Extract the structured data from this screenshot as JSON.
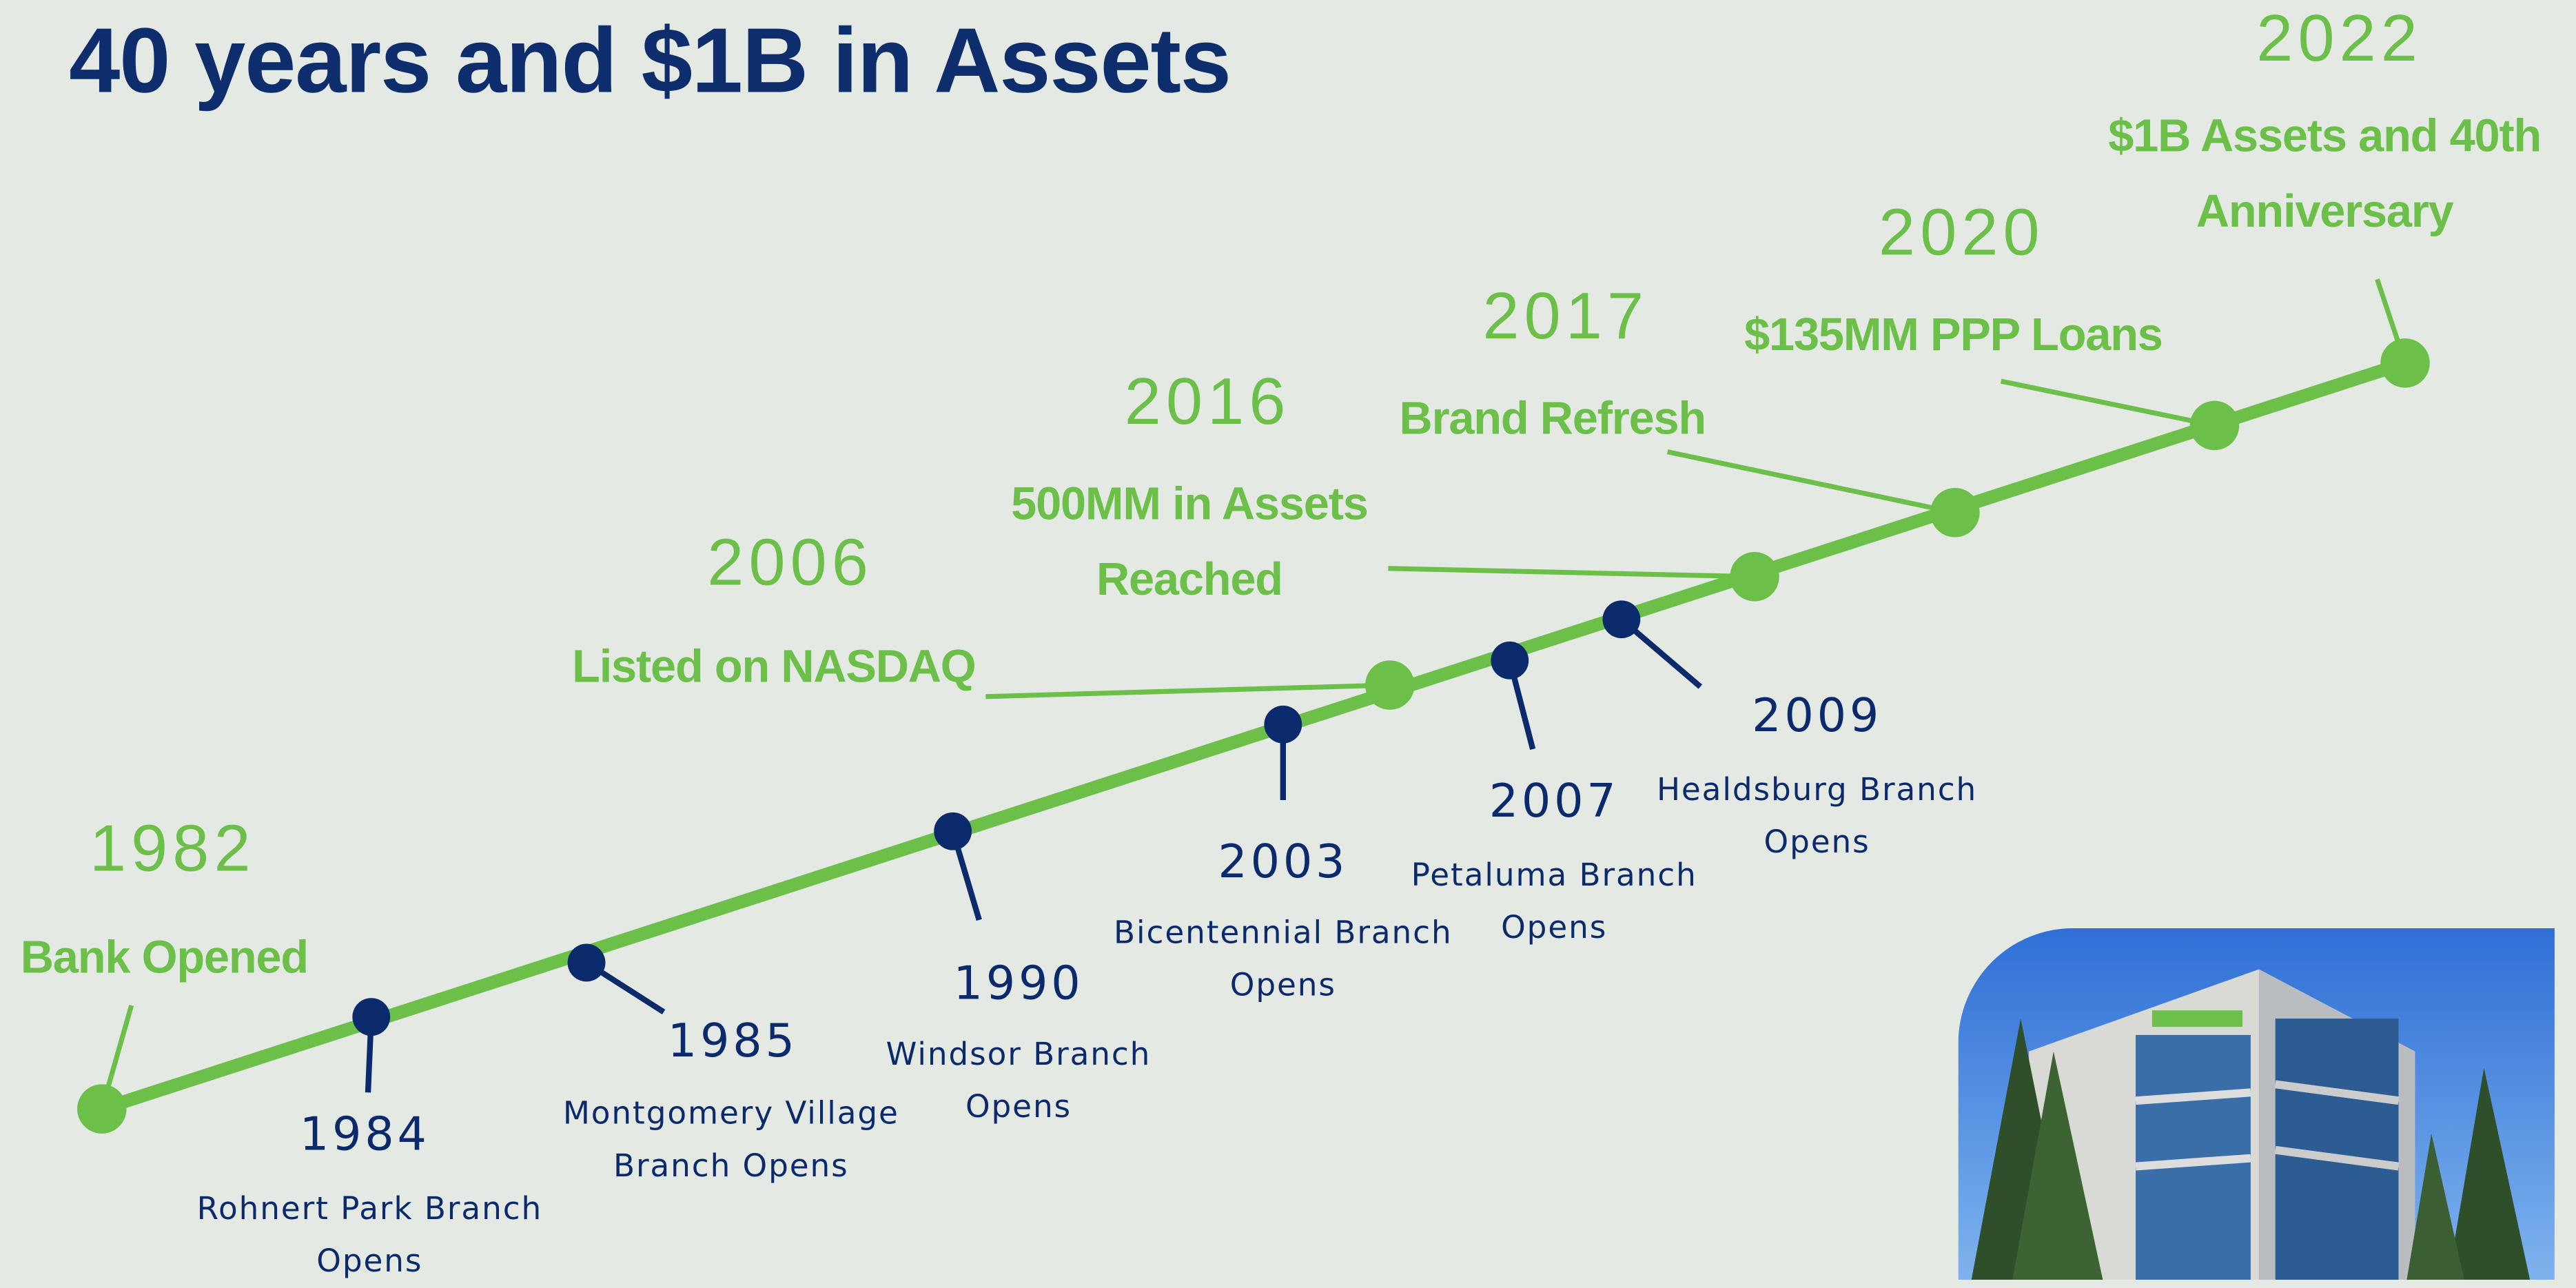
{
  "title": "40 years and $1B in Assets",
  "events": [
    {
      "year": "1982",
      "text": "Bank Opened"
    },
    {
      "year": "1984",
      "text": "Rohnert Park Branch Opens"
    },
    {
      "year": "1985",
      "text": "Montgomery Village Branch Opens"
    },
    {
      "year": "1990",
      "text": "Windsor Branch Opens"
    },
    {
      "year": "2003",
      "text": "Bicentennial Branch Opens"
    },
    {
      "year": "2006",
      "text": "Listed on NASDAQ"
    },
    {
      "year": "2007",
      "text": "Petaluma Branch Opens"
    },
    {
      "year": "2009",
      "text": "Healdsburg Branch Opens"
    },
    {
      "year": "2016",
      "text": "500MM in Assets Reached"
    },
    {
      "year": "2017",
      "text": "Brand Refresh"
    },
    {
      "year": "2020",
      "text": "$135MM PPP Loans"
    },
    {
      "year": "2022",
      "text": "$1B Assets and 40th Anniversary"
    }
  ]
}
